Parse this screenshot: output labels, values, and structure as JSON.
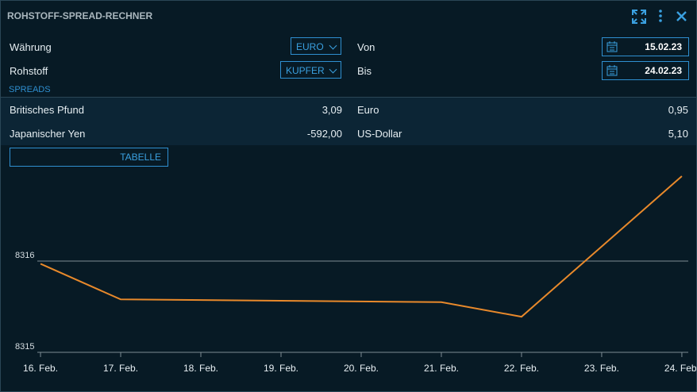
{
  "header": {
    "title": "ROHSTOFF-SPREAD-RECHNER"
  },
  "form": {
    "currency": {
      "label": "Währung",
      "value": "EURO"
    },
    "commodity": {
      "label": "Rohstoff",
      "value": "KUPFER"
    },
    "from": {
      "label": "Von",
      "value": "15.02.23"
    },
    "to": {
      "label": "Bis",
      "value": "24.02.23"
    }
  },
  "spreads": {
    "title": "SPREADS",
    "rows": [
      [
        {
          "name": "Britisches Pfund",
          "value": "3,09"
        },
        {
          "name": "Euro",
          "value": "0,95"
        }
      ],
      [
        {
          "name": "Japanischer Yen",
          "value": "-592,00"
        },
        {
          "name": "US-Dollar",
          "value": "5,10"
        }
      ]
    ]
  },
  "button": "TABELLE",
  "chart_data": {
    "type": "line",
    "x": [
      16,
      17,
      21,
      22,
      24
    ],
    "values": [
      8315.97,
      8315.58,
      8315.55,
      8315.39,
      8316.93
    ],
    "color": "#e8892b",
    "xlim": [
      15.96,
      24.08
    ],
    "xticks": [
      {
        "value": 16,
        "label": "16. Feb."
      },
      {
        "value": 17,
        "label": "17. Feb."
      },
      {
        "value": 18,
        "label": "18. Feb."
      },
      {
        "value": 19,
        "label": "19. Feb."
      },
      {
        "value": 20,
        "label": "20. Feb."
      },
      {
        "value": 21,
        "label": "21. Feb."
      },
      {
        "value": 22,
        "label": "22. Feb."
      },
      {
        "value": 23,
        "label": "23. Feb."
      },
      {
        "value": 24,
        "label": "24. Feb."
      }
    ],
    "ylim": [
      8315,
      8317
    ],
    "yticks": [
      8315,
      8316
    ],
    "grid": true
  }
}
